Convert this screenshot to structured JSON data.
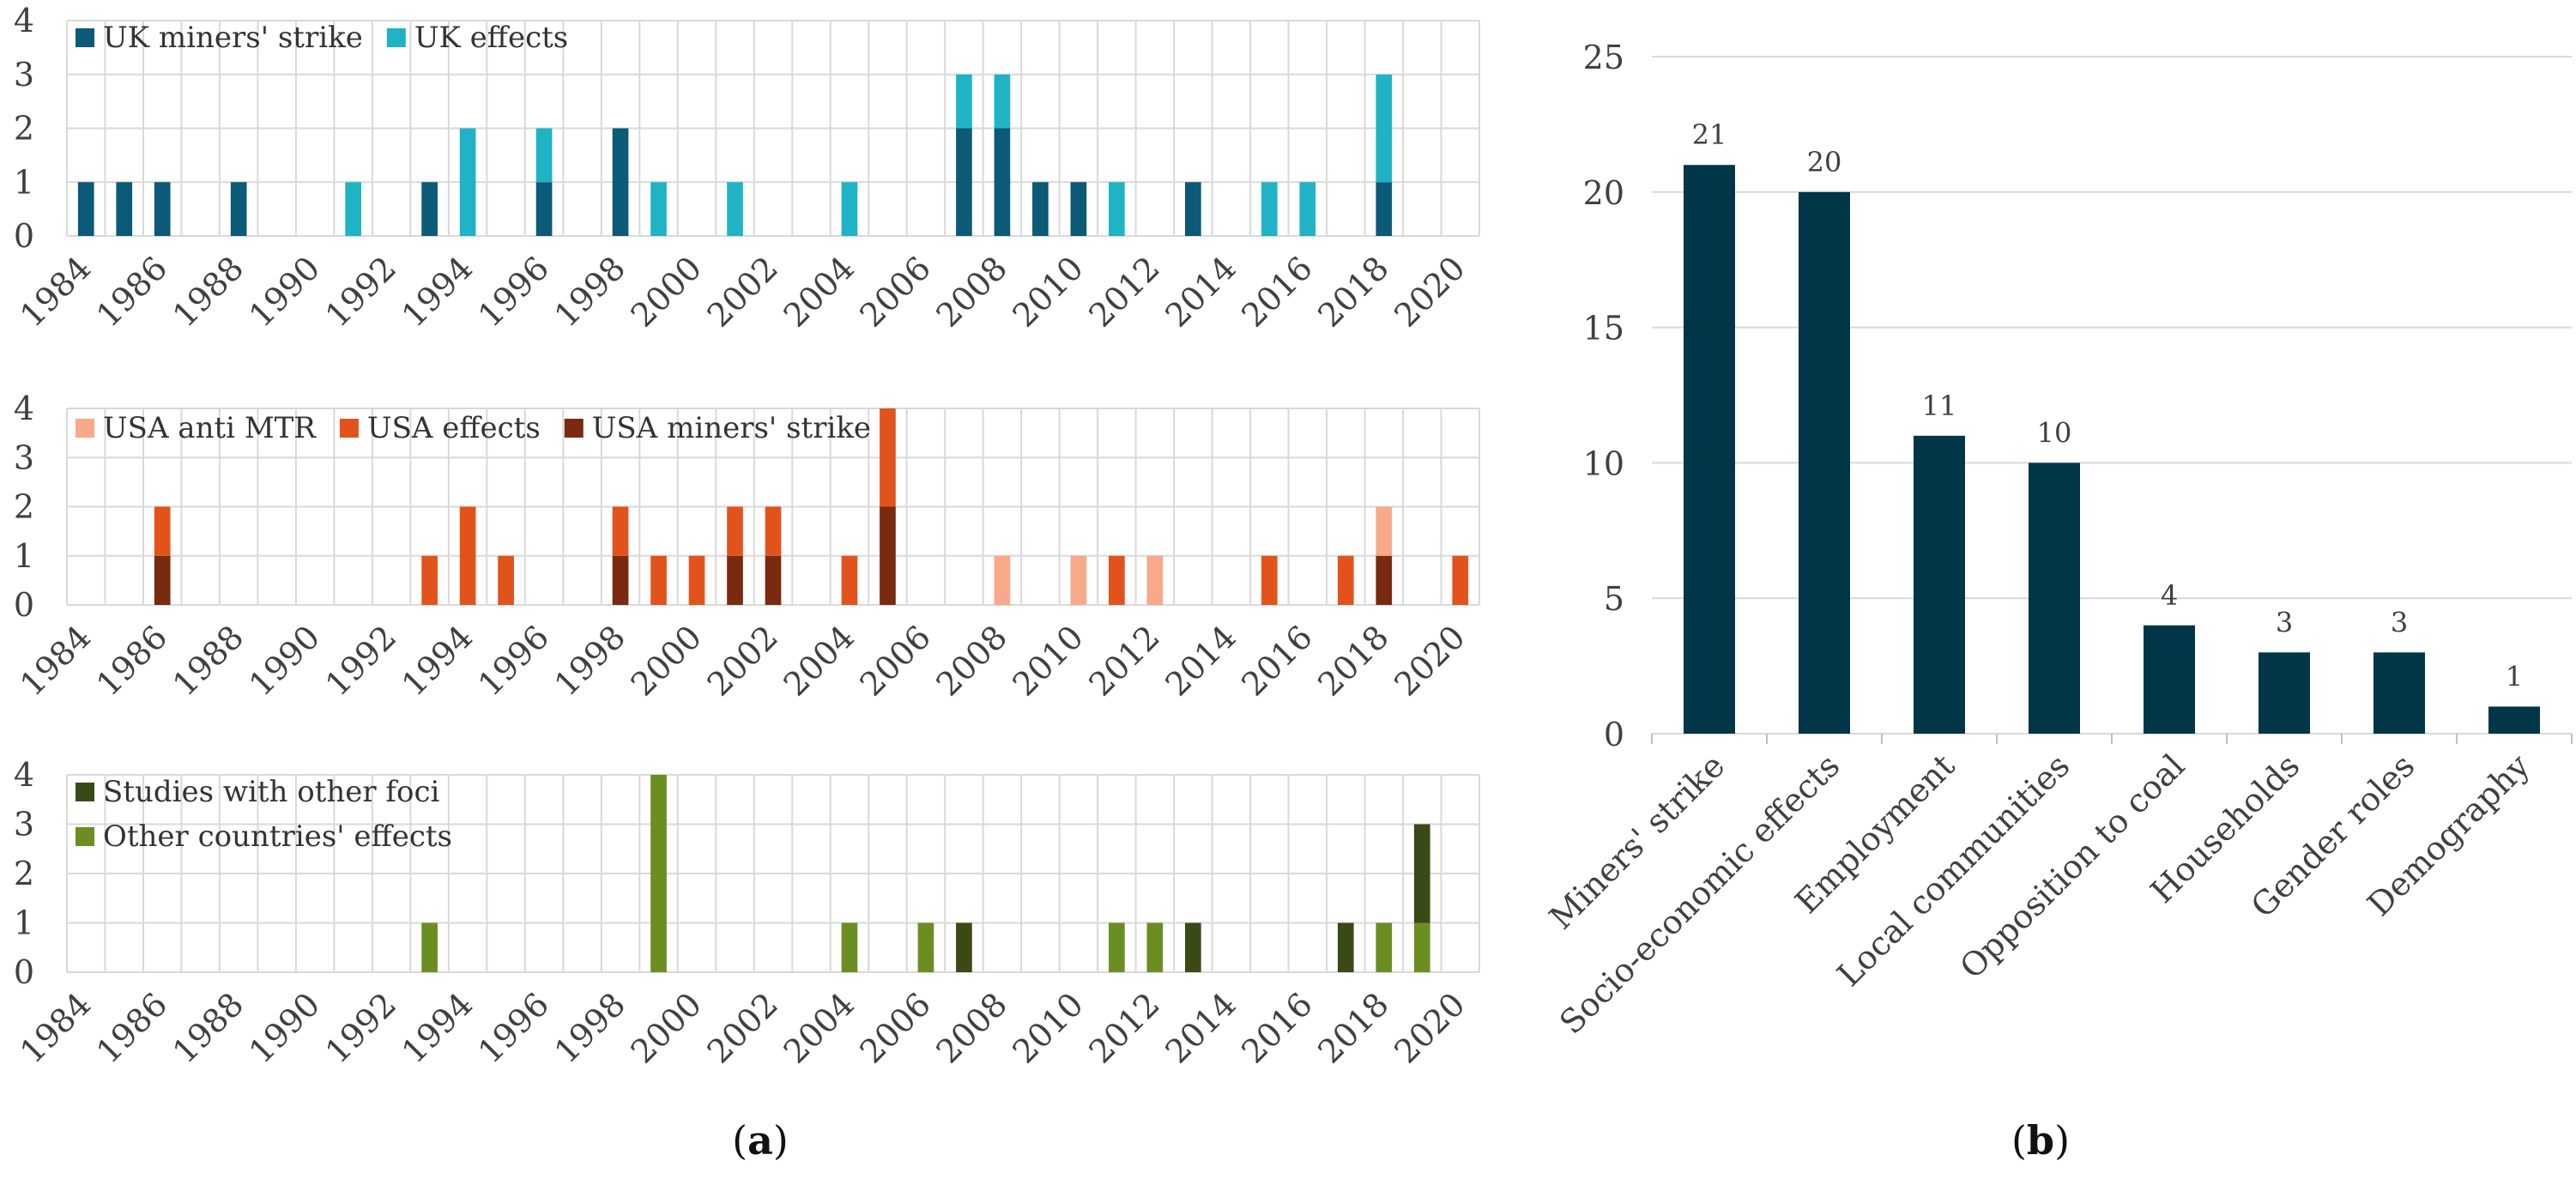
{
  "chart_data": [
    {
      "id": "uk",
      "type": "bar",
      "stacked": true,
      "x": [
        1984,
        1985,
        1986,
        1987,
        1988,
        1989,
        1990,
        1991,
        1992,
        1993,
        1994,
        1995,
        1996,
        1997,
        1998,
        1999,
        2000,
        2001,
        2002,
        2003,
        2004,
        2005,
        2006,
        2007,
        2008,
        2009,
        2010,
        2011,
        2012,
        2013,
        2014,
        2015,
        2016,
        2017,
        2018,
        2019,
        2020
      ],
      "xticks": [
        "1984",
        "1986",
        "1988",
        "1990",
        "1992",
        "1994",
        "1996",
        "1998",
        "2000",
        "2002",
        "2004",
        "2006",
        "2008",
        "2010",
        "2012",
        "2014",
        "2016",
        "2018",
        "2020"
      ],
      "yticks": [
        "0",
        "1",
        "2",
        "3",
        "4"
      ],
      "ylim": [
        0,
        4
      ],
      "legend_position": "top-left",
      "series": [
        {
          "name": "UK miners' strike",
          "color": "#0b5a77",
          "values": [
            1,
            1,
            1,
            0,
            1,
            0,
            0,
            0,
            0,
            1,
            0,
            0,
            1,
            0,
            2,
            0,
            0,
            0,
            0,
            0,
            0,
            0,
            0,
            2,
            2,
            1,
            1,
            0,
            0,
            1,
            0,
            0,
            0,
            0,
            1,
            0,
            0
          ]
        },
        {
          "name": "UK effects",
          "color": "#1fb3c5",
          "values": [
            0,
            0,
            0,
            0,
            0,
            0,
            0,
            1,
            0,
            0,
            2,
            0,
            1,
            0,
            0,
            1,
            0,
            1,
            0,
            0,
            1,
            0,
            0,
            1,
            1,
            0,
            0,
            1,
            0,
            0,
            0,
            1,
            1,
            0,
            2,
            0,
            0
          ]
        }
      ]
    },
    {
      "id": "usa",
      "type": "bar",
      "stacked": true,
      "x": [
        1984,
        1985,
        1986,
        1987,
        1988,
        1989,
        1990,
        1991,
        1992,
        1993,
        1994,
        1995,
        1996,
        1997,
        1998,
        1999,
        2000,
        2001,
        2002,
        2003,
        2004,
        2005,
        2006,
        2007,
        2008,
        2009,
        2010,
        2011,
        2012,
        2013,
        2014,
        2015,
        2016,
        2017,
        2018,
        2019,
        2020
      ],
      "xticks": [
        "1984",
        "1986",
        "1988",
        "1990",
        "1992",
        "1994",
        "1996",
        "1998",
        "2000",
        "2002",
        "2004",
        "2006",
        "2008",
        "2010",
        "2012",
        "2014",
        "2016",
        "2018",
        "2020"
      ],
      "yticks": [
        "0",
        "1",
        "2",
        "3",
        "4"
      ],
      "ylim": [
        0,
        4
      ],
      "legend_position": "top-left",
      "series": [
        {
          "name": "USA miners' strike",
          "color": "#7a2a0e",
          "values": [
            0,
            0,
            1,
            0,
            0,
            0,
            0,
            0,
            0,
            0,
            0,
            0,
            0,
            0,
            1,
            0,
            0,
            1,
            1,
            0,
            0,
            2,
            0,
            0,
            0,
            0,
            0,
            0,
            0,
            0,
            0,
            0,
            0,
            0,
            1,
            0,
            0
          ]
        },
        {
          "name": "USA effects",
          "color": "#e2531c",
          "values": [
            0,
            0,
            1,
            0,
            0,
            0,
            0,
            0,
            0,
            1,
            2,
            1,
            0,
            0,
            1,
            1,
            1,
            1,
            1,
            0,
            1,
            2,
            0,
            0,
            0,
            0,
            0,
            1,
            0,
            0,
            0,
            1,
            0,
            1,
            0,
            0,
            1
          ]
        },
        {
          "name": "USA anti MTR",
          "color": "#f7a98a",
          "values": [
            0,
            0,
            0,
            0,
            0,
            0,
            0,
            0,
            0,
            0,
            0,
            0,
            0,
            0,
            0,
            0,
            0,
            0,
            0,
            0,
            0,
            0,
            0,
            0,
            1,
            0,
            1,
            0,
            1,
            0,
            0,
            0,
            0,
            0,
            1,
            0,
            0
          ]
        }
      ],
      "legend_order": [
        "USA anti MTR",
        "USA effects",
        "USA miners' strike"
      ]
    },
    {
      "id": "other",
      "type": "bar",
      "stacked": true,
      "x": [
        1984,
        1985,
        1986,
        1987,
        1988,
        1989,
        1990,
        1991,
        1992,
        1993,
        1994,
        1995,
        1996,
        1997,
        1998,
        1999,
        2000,
        2001,
        2002,
        2003,
        2004,
        2005,
        2006,
        2007,
        2008,
        2009,
        2010,
        2011,
        2012,
        2013,
        2014,
        2015,
        2016,
        2017,
        2018,
        2019,
        2020
      ],
      "xticks": [
        "1984",
        "1986",
        "1988",
        "1990",
        "1992",
        "1994",
        "1996",
        "1998",
        "2000",
        "2002",
        "2004",
        "2006",
        "2008",
        "2010",
        "2012",
        "2014",
        "2016",
        "2018",
        "2020"
      ],
      "yticks": [
        "0",
        "1",
        "2",
        "3",
        "4"
      ],
      "ylim": [
        0,
        4
      ],
      "legend_position": "top-left",
      "series": [
        {
          "name": "Other countries' effects",
          "color": "#6b8e23",
          "values": [
            0,
            0,
            0,
            0,
            0,
            0,
            0,
            0,
            0,
            1,
            0,
            0,
            0,
            0,
            0,
            4,
            0,
            0,
            0,
            0,
            1,
            0,
            1,
            0,
            0,
            0,
            0,
            1,
            1,
            0,
            0,
            0,
            0,
            0,
            1,
            1,
            0
          ]
        },
        {
          "name": "Studies with other foci",
          "color": "#3a4a16",
          "values": [
            0,
            0,
            0,
            0,
            0,
            0,
            0,
            0,
            0,
            0,
            0,
            0,
            0,
            0,
            0,
            0,
            0,
            0,
            0,
            0,
            0,
            0,
            0,
            1,
            0,
            0,
            0,
            0,
            0,
            1,
            0,
            0,
            0,
            1,
            0,
            2,
            0
          ]
        }
      ],
      "legend_order": [
        "Studies with other foci",
        "Other countries' effects"
      ]
    },
    {
      "id": "topics",
      "type": "bar",
      "categories": [
        "Miners' strike",
        "Socio-economic effects",
        "Employment",
        "Local communities",
        "Opposition to coal",
        "Households",
        "Gender roles",
        "Demography"
      ],
      "values": [
        21,
        20,
        11,
        10,
        4,
        3,
        3,
        1
      ],
      "data_labels": [
        "21",
        "20",
        "11",
        "10",
        "4",
        "3",
        "3",
        "1"
      ],
      "yticks": [
        "0",
        "5",
        "10",
        "15",
        "20",
        "25"
      ],
      "ylim": [
        0,
        25
      ],
      "color": "#003648",
      "grid": true
    }
  ],
  "captions": {
    "a": {
      "open": "(",
      "letter": "a",
      "close": ")"
    },
    "b": {
      "open": "(",
      "letter": "b",
      "close": ")"
    }
  }
}
